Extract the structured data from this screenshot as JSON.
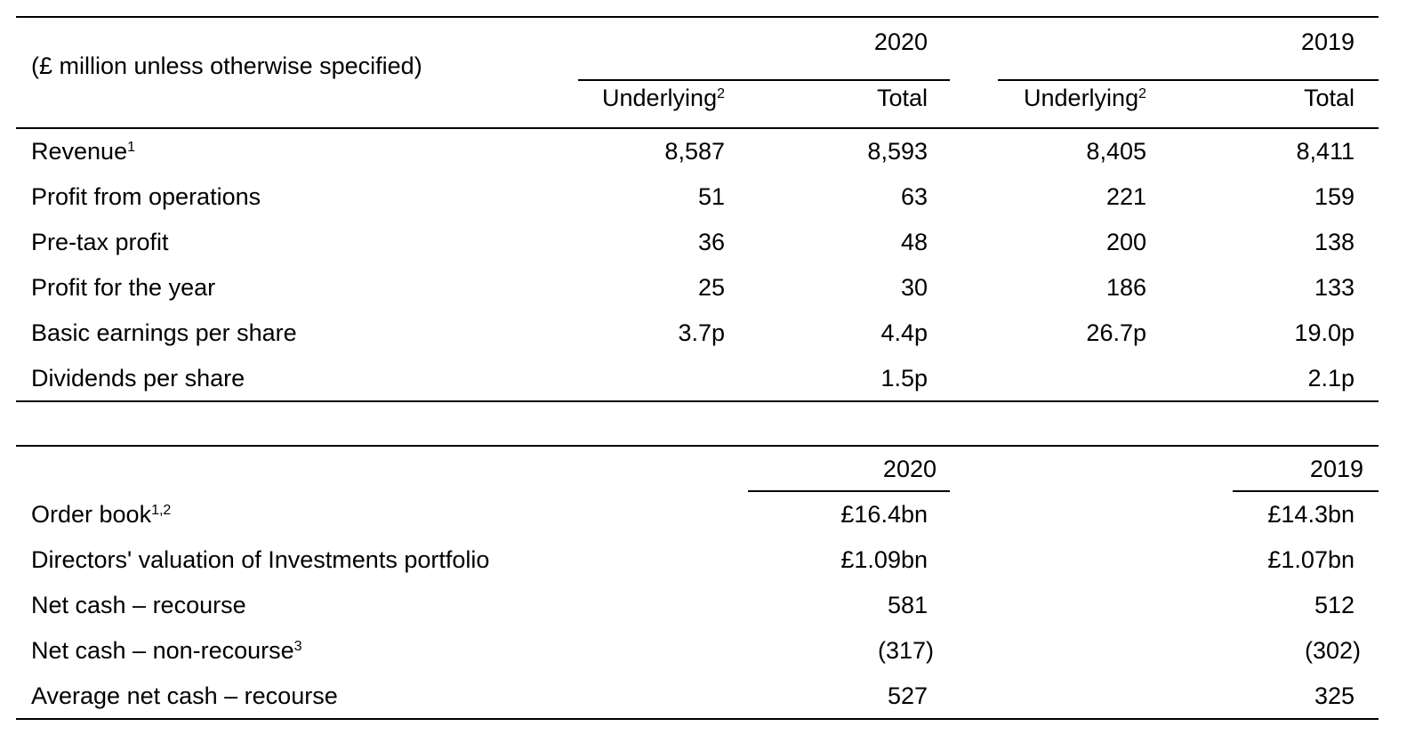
{
  "table1": {
    "caption": "(£ million unless otherwise specified)",
    "years": [
      "2020",
      "2019"
    ],
    "subheaders": [
      {
        "label": "Underlying",
        "sup": "2"
      },
      {
        "label": "Total",
        "sup": ""
      },
      {
        "label": "Underlying",
        "sup": "2"
      },
      {
        "label": "Total",
        "sup": ""
      }
    ],
    "rows": [
      {
        "label": "Revenue",
        "sup": "1",
        "values": [
          "8,587",
          "8,593",
          "8,405",
          "8,411"
        ]
      },
      {
        "label": "Profit from operations",
        "sup": "",
        "values": [
          "51",
          "63",
          "221",
          "159"
        ]
      },
      {
        "label": "Pre-tax profit",
        "sup": "",
        "values": [
          "36",
          "48",
          "200",
          "138"
        ]
      },
      {
        "label": "Profit for the year",
        "sup": "",
        "values": [
          "25",
          "30",
          "186",
          "133"
        ]
      },
      {
        "label": "Basic earnings per share",
        "sup": "",
        "values": [
          "3.7p",
          "4.4p",
          "26.7p",
          "19.0p"
        ]
      },
      {
        "label": "Dividends per share",
        "sup": "",
        "values": [
          "",
          "1.5p",
          "",
          "2.1p"
        ]
      }
    ]
  },
  "table2": {
    "years": [
      "2020",
      "2019"
    ],
    "rows": [
      {
        "label": "Order book",
        "sup": "1,2",
        "values": [
          "£16.4bn",
          "£14.3bn"
        ]
      },
      {
        "label": "Directors' valuation of Investments portfolio",
        "sup": "",
        "values": [
          "£1.09bn",
          "£1.07bn"
        ]
      },
      {
        "label": "Net cash – recourse",
        "sup": "",
        "values": [
          "581",
          "512"
        ]
      },
      {
        "label": "Net cash – non-recourse",
        "sup": "3",
        "values": [
          "(317)",
          "(302)"
        ]
      },
      {
        "label": "Average net cash – recourse",
        "sup": "",
        "values": [
          "527",
          "325"
        ]
      }
    ]
  }
}
